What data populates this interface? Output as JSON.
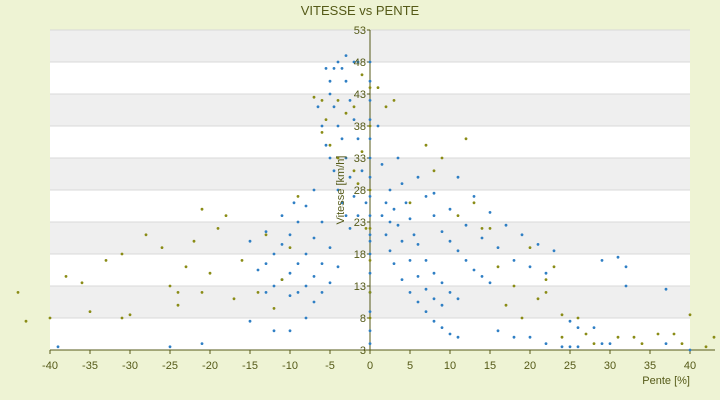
{
  "chart_data": {
    "type": "scatter",
    "title": "VITESSE vs PENTE",
    "xlabel": "Pente [%]",
    "ylabel": "Vitesse [km/h]",
    "xlim": [
      -40,
      40
    ],
    "ylim": [
      3,
      53
    ],
    "x_ticks": [
      -40,
      -35,
      -30,
      -25,
      -20,
      -15,
      -10,
      -5,
      0,
      5,
      10,
      15,
      20,
      25,
      30,
      35,
      40
    ],
    "y_ticks": [
      3,
      8,
      13,
      18,
      23,
      28,
      33,
      38,
      43,
      48,
      53
    ],
    "grid": true,
    "legend": "none",
    "colors": {
      "background": "#eef3d4",
      "band_light": "#ffffff",
      "band_dark": "#efefef",
      "series_blue": "#2f7fc4",
      "series_olive": "#8a8c16",
      "axis": "#555a18",
      "text": "#555a18"
    },
    "series": [
      {
        "color_key": "series_blue",
        "points": [
          [
            -39,
            3.5
          ],
          [
            -25,
            3.5
          ],
          [
            -21,
            4
          ],
          [
            -15,
            7.5
          ],
          [
            -12,
            6
          ],
          [
            -10,
            6
          ],
          [
            -8,
            8
          ],
          [
            -5.5,
            47
          ],
          [
            -5,
            45
          ],
          [
            -4.5,
            47
          ],
          [
            -4,
            48
          ],
          [
            -3.5,
            47
          ],
          [
            -3,
            49
          ],
          [
            -2,
            48
          ],
          [
            -1.5,
            48
          ],
          [
            -6.5,
            41
          ],
          [
            -6,
            38
          ],
          [
            -5.5,
            35
          ],
          [
            -5,
            33
          ],
          [
            -4.5,
            31
          ],
          [
            -4,
            28
          ],
          [
            -3.5,
            26
          ],
          [
            -3,
            24
          ],
          [
            -2.5,
            22
          ],
          [
            -5,
            43
          ],
          [
            -4.5,
            41
          ],
          [
            -4,
            38
          ],
          [
            -3.5,
            36
          ],
          [
            -3,
            33
          ],
          [
            -2.5,
            30
          ],
          [
            -2,
            27
          ],
          [
            -1.5,
            24
          ],
          [
            -3,
            45
          ],
          [
            -2.5,
            42
          ],
          [
            -2,
            39
          ],
          [
            -1.5,
            36
          ],
          [
            -1,
            31
          ],
          [
            -0.5,
            26
          ],
          [
            0,
            20
          ],
          [
            -7,
            28
          ],
          [
            -8,
            25.5
          ],
          [
            -9,
            23
          ],
          [
            -10,
            21
          ],
          [
            -11,
            19.5
          ],
          [
            -12,
            18
          ],
          [
            -13,
            16.5
          ],
          [
            -14,
            15.5
          ],
          [
            -6,
            23
          ],
          [
            -7,
            20.5
          ],
          [
            -8,
            18
          ],
          [
            -9,
            16.5
          ],
          [
            -10,
            15
          ],
          [
            -11,
            14
          ],
          [
            -12,
            13
          ],
          [
            -13,
            12
          ],
          [
            -5,
            19
          ],
          [
            -6,
            16.5
          ],
          [
            -7,
            14.5
          ],
          [
            -8,
            13
          ],
          [
            -9,
            12
          ],
          [
            -10,
            11.5
          ],
          [
            -4,
            16
          ],
          [
            -5,
            13.5
          ],
          [
            -6,
            12
          ],
          [
            -7,
            10.5
          ],
          [
            -9.5,
            26
          ],
          [
            -11,
            24
          ],
          [
            -13,
            21.5
          ],
          [
            -15,
            20
          ],
          [
            0,
            48
          ],
          [
            0,
            45
          ],
          [
            0,
            42
          ],
          [
            0,
            39
          ],
          [
            0,
            36
          ],
          [
            0,
            33
          ],
          [
            0,
            30
          ],
          [
            0,
            27
          ],
          [
            0,
            24
          ],
          [
            0,
            21
          ],
          [
            0,
            18
          ],
          [
            0,
            15
          ],
          [
            0,
            12
          ],
          [
            0,
            9
          ],
          [
            0,
            6
          ],
          [
            0,
            4
          ],
          [
            1,
            38
          ],
          [
            1.5,
            32
          ],
          [
            2,
            26
          ],
          [
            2.5,
            23
          ],
          [
            3.5,
            33
          ],
          [
            4,
            29
          ],
          [
            4.5,
            26
          ],
          [
            5,
            23.5
          ],
          [
            5.5,
            21
          ],
          [
            6,
            19.5
          ],
          [
            7,
            17
          ],
          [
            8,
            15
          ],
          [
            9,
            13.5
          ],
          [
            10,
            12
          ],
          [
            11,
            11
          ],
          [
            2.5,
            28
          ],
          [
            3,
            25
          ],
          [
            3.5,
            22.5
          ],
          [
            4,
            20
          ],
          [
            5,
            17
          ],
          [
            6,
            14.5
          ],
          [
            7,
            12.5
          ],
          [
            8,
            11
          ],
          [
            9,
            10
          ],
          [
            1.5,
            24
          ],
          [
            2,
            21
          ],
          [
            2.5,
            18.5
          ],
          [
            3,
            16.5
          ],
          [
            4,
            14
          ],
          [
            5,
            12
          ],
          [
            6,
            10.5
          ],
          [
            7,
            9
          ],
          [
            8,
            7.5
          ],
          [
            9,
            6.5
          ],
          [
            10,
            5.5
          ],
          [
            11,
            5
          ],
          [
            6,
            30
          ],
          [
            7,
            27
          ],
          [
            8,
            24
          ],
          [
            9,
            21.5
          ],
          [
            10,
            20
          ],
          [
            11,
            18.5
          ],
          [
            12,
            17
          ],
          [
            13,
            15.5
          ],
          [
            14,
            14.5
          ],
          [
            15,
            13.5
          ],
          [
            8,
            27.5
          ],
          [
            10,
            25
          ],
          [
            12,
            22.5
          ],
          [
            14,
            20.5
          ],
          [
            16,
            19
          ],
          [
            18,
            17
          ],
          [
            20,
            16
          ],
          [
            22,
            15
          ],
          [
            11,
            30
          ],
          [
            13,
            27
          ],
          [
            15,
            24.5
          ],
          [
            17,
            22.5
          ],
          [
            19,
            21
          ],
          [
            21,
            19.5
          ],
          [
            23,
            18.5
          ],
          [
            16,
            6
          ],
          [
            18,
            5
          ],
          [
            20,
            5
          ],
          [
            22,
            4
          ],
          [
            24,
            3.5
          ],
          [
            25,
            3.5
          ],
          [
            26,
            3.5
          ],
          [
            25,
            7.5
          ],
          [
            26,
            6.5
          ],
          [
            28,
            6.5
          ],
          [
            29,
            4
          ],
          [
            30,
            4
          ],
          [
            29,
            17
          ],
          [
            31,
            17.5
          ],
          [
            32,
            16
          ],
          [
            32,
            13
          ],
          [
            37,
            12.5
          ],
          [
            37,
            4
          ],
          [
            40,
            3
          ]
        ]
      },
      {
        "color_key": "series_olive",
        "points": [
          [
            -44,
            12
          ],
          [
            -43,
            7.5
          ],
          [
            -40,
            8
          ],
          [
            -38,
            14.5
          ],
          [
            -36,
            13.5
          ],
          [
            -35,
            9
          ],
          [
            -33,
            17
          ],
          [
            -31,
            18
          ],
          [
            -31,
            8
          ],
          [
            -30,
            8.5
          ],
          [
            -28,
            21
          ],
          [
            -26,
            19
          ],
          [
            -25,
            13
          ],
          [
            -24,
            12
          ],
          [
            -24,
            10
          ],
          [
            -23,
            16
          ],
          [
            -22,
            20
          ],
          [
            -21,
            25
          ],
          [
            -21,
            12
          ],
          [
            -20,
            15
          ],
          [
            -19,
            22
          ],
          [
            -18,
            24
          ],
          [
            -17,
            11
          ],
          [
            -16,
            17
          ],
          [
            -14,
            12
          ],
          [
            -13,
            21
          ],
          [
            -12,
            9.5
          ],
          [
            -11,
            14
          ],
          [
            -10,
            19
          ],
          [
            -9,
            27
          ],
          [
            -7,
            42.5
          ],
          [
            -6,
            42
          ],
          [
            -6,
            37
          ],
          [
            -5.5,
            39
          ],
          [
            -5,
            35
          ],
          [
            -4,
            42
          ],
          [
            -4,
            33
          ],
          [
            -3,
            40
          ],
          [
            -2,
            41
          ],
          [
            -1,
            46
          ],
          [
            -1,
            34
          ],
          [
            -1.5,
            29
          ],
          [
            -2,
            31
          ],
          [
            -0.5,
            22
          ],
          [
            0,
            44
          ],
          [
            0,
            38
          ],
          [
            0,
            28
          ],
          [
            0,
            22
          ],
          [
            0,
            17
          ],
          [
            0,
            12
          ],
          [
            0,
            8
          ],
          [
            1,
            44
          ],
          [
            2,
            41
          ],
          [
            3,
            42
          ],
          [
            5,
            26
          ],
          [
            7,
            35
          ],
          [
            8,
            31
          ],
          [
            9,
            33
          ],
          [
            11,
            24
          ],
          [
            12,
            36
          ],
          [
            13,
            26
          ],
          [
            14,
            22
          ],
          [
            15,
            22
          ],
          [
            16,
            16
          ],
          [
            17,
            10
          ],
          [
            18,
            13
          ],
          [
            19,
            8
          ],
          [
            20,
            19
          ],
          [
            21,
            11
          ],
          [
            22,
            12
          ],
          [
            22,
            14
          ],
          [
            23,
            16
          ],
          [
            24,
            8.5
          ],
          [
            24,
            5
          ],
          [
            26,
            8
          ],
          [
            27,
            5.5
          ],
          [
            28,
            4
          ],
          [
            31,
            5
          ],
          [
            33,
            5
          ],
          [
            34,
            4
          ],
          [
            36,
            5.5
          ],
          [
            38,
            5.5
          ],
          [
            39,
            4
          ],
          [
            40,
            8.5
          ],
          [
            42,
            3.5
          ],
          [
            43,
            5
          ]
        ]
      }
    ]
  }
}
